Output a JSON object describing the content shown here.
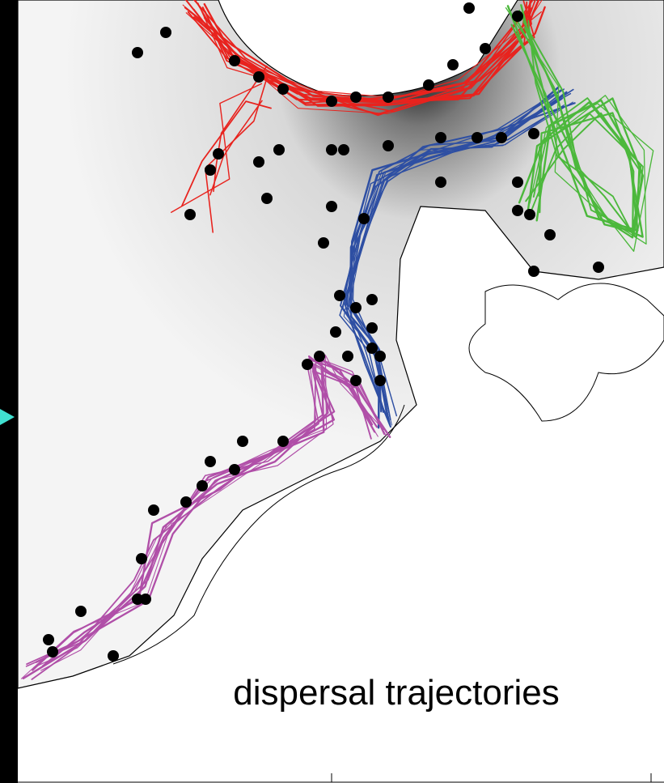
{
  "map": {
    "label": "dispersal trajectories"
  }
}
